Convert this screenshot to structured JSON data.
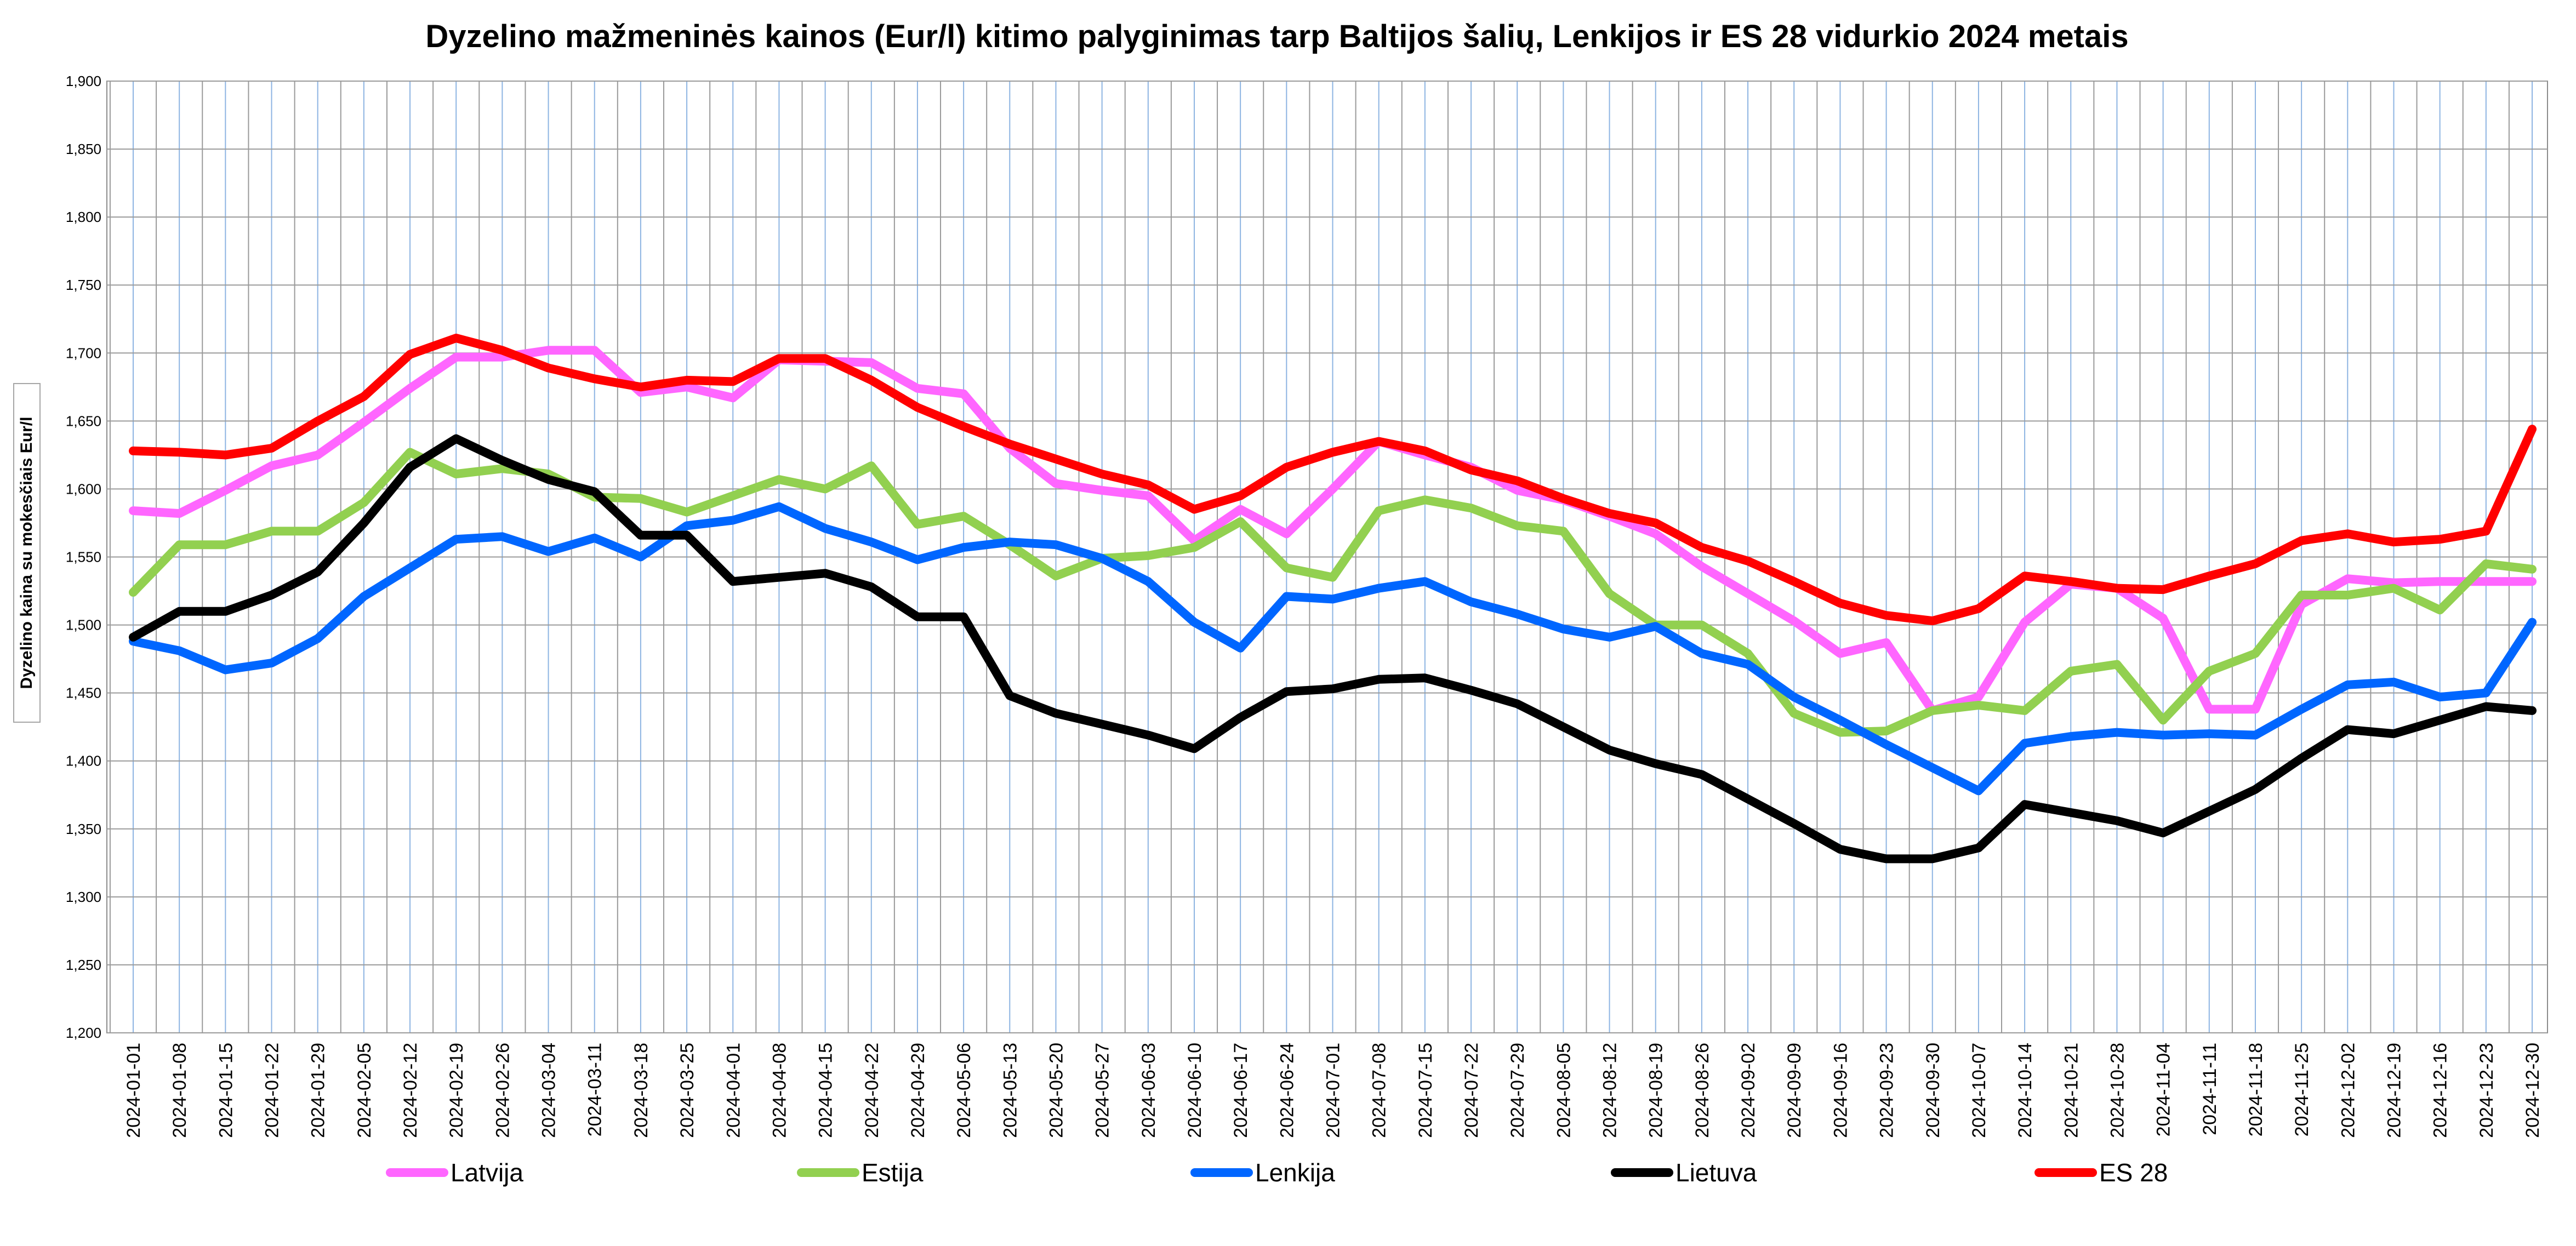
{
  "chart_data": {
    "type": "line",
    "title": "Dyzelino mažmeninės kainos (Eur/l) kitimo palyginimas tarp Baltijos šalių, Lenkijos ir ES 28 vidurkio 2024 metais",
    "xlabel": "",
    "ylabel": "Dyzelino kaina su mokesčiais Eur/l",
    "ylim": [
      1.2,
      1.9
    ],
    "ytick_step": 0.05,
    "ytick_labels": [
      "1,200",
      "1,250",
      "1,300",
      "1,350",
      "1,400",
      "1,450",
      "1,500",
      "1,550",
      "1,600",
      "1,650",
      "1,700",
      "1,750",
      "1,800",
      "1,850",
      "1,900"
    ],
    "grid": true,
    "legend_position": "bottom",
    "x": [
      "2024-01-01",
      "2024-01-08",
      "2024-01-15",
      "2024-01-22",
      "2024-01-29",
      "2024-02-05",
      "2024-02-12",
      "2024-02-19",
      "2024-02-26",
      "2024-03-04",
      "2024-03-11",
      "2024-03-18",
      "2024-03-25",
      "2024-04-01",
      "2024-04-08",
      "2024-04-15",
      "2024-04-22",
      "2024-04-29",
      "2024-05-06",
      "2024-05-13",
      "2024-05-20",
      "2024-05-27",
      "2024-06-03",
      "2024-06-10",
      "2024-06-17",
      "2024-06-24",
      "2024-07-01",
      "2024-07-08",
      "2024-07-15",
      "2024-07-22",
      "2024-07-29",
      "2024-08-05",
      "2024-08-12",
      "2024-08-19",
      "2024-08-26",
      "2024-09-02",
      "2024-09-09",
      "2024-09-16",
      "2024-09-23",
      "2024-09-30",
      "2024-10-07",
      "2024-10-14",
      "2024-10-21",
      "2024-10-28",
      "2024-11-04",
      "2024-11-11",
      "2024-11-18",
      "2024-11-25",
      "2024-12-02",
      "2024-12-19",
      "2024-12-16",
      "2024-12-23",
      "2024-12-30"
    ],
    "series": [
      {
        "name": "Latvija",
        "color": "#ff66ff",
        "values": [
          1.584,
          1.582,
          1.599,
          1.617,
          1.625,
          1.649,
          1.674,
          1.697,
          1.697,
          1.702,
          1.702,
          1.671,
          1.675,
          1.667,
          1.695,
          1.694,
          1.693,
          1.674,
          1.67,
          1.63,
          1.604,
          1.599,
          1.595,
          1.562,
          1.585,
          1.567,
          1.6,
          1.635,
          1.625,
          1.616,
          1.599,
          1.592,
          1.58,
          1.567,
          1.543,
          1.523,
          1.503,
          1.479,
          1.487,
          1.437,
          1.447,
          1.502,
          1.53,
          1.527,
          1.505,
          1.438,
          1.438,
          1.515,
          1.534,
          1.531,
          1.532,
          1.532,
          1.532
        ]
      },
      {
        "name": "Estija",
        "color": "#92d050",
        "values": [
          1.524,
          1.559,
          1.559,
          1.569,
          1.569,
          1.59,
          1.627,
          1.611,
          1.615,
          1.611,
          1.594,
          1.593,
          1.583,
          1.595,
          1.607,
          1.6,
          1.617,
          1.574,
          1.58,
          1.559,
          1.536,
          1.549,
          1.551,
          1.557,
          1.576,
          1.542,
          1.535,
          1.584,
          1.592,
          1.586,
          1.573,
          1.569,
          1.523,
          1.5,
          1.5,
          1.479,
          1.435,
          1.421,
          1.422,
          1.437,
          1.441,
          1.437,
          1.466,
          1.471,
          1.43,
          1.466,
          1.479,
          1.522,
          1.522,
          1.527,
          1.511,
          1.545,
          1.541
        ]
      },
      {
        "name": "Lenkija",
        "color": "#0066ff",
        "values": [
          1.488,
          1.481,
          1.467,
          1.472,
          1.49,
          1.521,
          1.542,
          1.563,
          1.565,
          1.554,
          1.564,
          1.55,
          1.573,
          1.577,
          1.587,
          1.571,
          1.561,
          1.548,
          1.557,
          1.561,
          1.559,
          1.549,
          1.532,
          1.502,
          1.483,
          1.521,
          1.519,
          1.527,
          1.532,
          1.517,
          1.508,
          1.497,
          1.491,
          1.499,
          1.479,
          1.471,
          1.447,
          1.43,
          1.412,
          1.395,
          1.378,
          1.413,
          1.418,
          1.421,
          1.419,
          1.42,
          1.419,
          1.438,
          1.456,
          1.458,
          1.447,
          1.45,
          1.502
        ]
      },
      {
        "name": "Lietuva",
        "color": "#000000",
        "values": [
          1.491,
          1.51,
          1.51,
          1.522,
          1.539,
          1.575,
          1.616,
          1.637,
          1.621,
          1.607,
          1.598,
          1.566,
          1.566,
          1.532,
          1.535,
          1.538,
          1.528,
          1.506,
          1.506,
          1.448,
          1.435,
          1.427,
          1.419,
          1.409,
          1.432,
          1.451,
          1.453,
          1.46,
          1.461,
          1.452,
          1.442,
          1.425,
          1.408,
          1.398,
          1.39,
          1.372,
          1.354,
          1.335,
          1.328,
          1.328,
          1.336,
          1.368,
          1.362,
          1.356,
          1.347,
          1.363,
          1.379,
          1.402,
          1.423,
          1.42,
          1.43,
          1.44,
          1.437
        ]
      },
      {
        "name": "ES 28",
        "color": "#ff0000",
        "values": [
          1.628,
          1.627,
          1.625,
          1.63,
          1.65,
          1.668,
          1.699,
          1.711,
          1.702,
          1.689,
          1.681,
          1.675,
          1.68,
          1.679,
          1.696,
          1.696,
          1.68,
          1.66,
          1.646,
          1.633,
          1.622,
          1.611,
          1.603,
          1.585,
          1.595,
          1.616,
          1.627,
          1.635,
          1.628,
          1.614,
          1.606,
          1.593,
          1.582,
          1.575,
          1.557,
          1.547,
          1.532,
          1.516,
          1.507,
          1.503,
          1.512,
          1.536,
          1.532,
          1.527,
          1.526,
          1.536,
          1.545,
          1.562,
          1.567,
          1.561,
          1.563,
          1.569,
          1.644
        ]
      }
    ]
  }
}
